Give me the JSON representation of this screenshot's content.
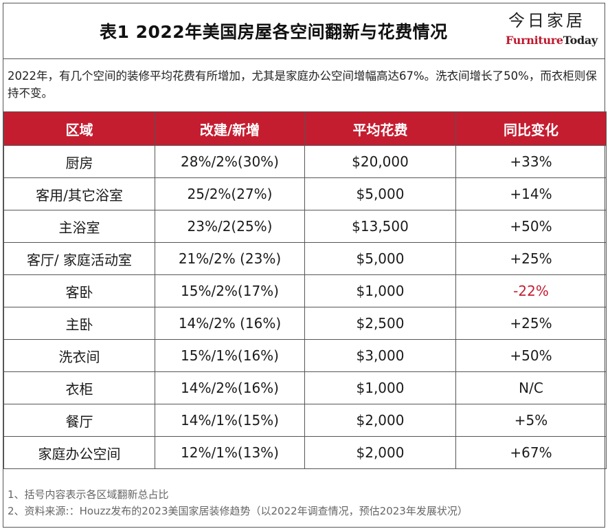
{
  "header": {
    "title": "表1  2022年美国房屋各空间翻新与花费情况",
    "logo_cn": "今日家居",
    "logo_en_part1": "Furniture",
    "logo_en_part2": "Today"
  },
  "intro": "2022年，有几个空间的装修平均花费有所增加，尤其是家庭办公空间增幅高达67%。洗衣间增长了50%，而衣柜则保持不变。",
  "table": {
    "headers": [
      "区域",
      "改建/新增",
      "平均花费",
      "同比变化"
    ],
    "rows": [
      {
        "area": "厨房",
        "ratio": "28%/2%(30%)",
        "cost": "$20,000",
        "change": "+33%"
      },
      {
        "area": "客用/其它浴室",
        "ratio": "25/2%(27%)",
        "cost": "$5,000",
        "change": "+14%"
      },
      {
        "area": "主浴室",
        "ratio": "23%/2(25%)",
        "cost": "$13,500",
        "change": "+50%"
      },
      {
        "area": "客厅/ 家庭活动室",
        "ratio": "21%/2% (23%)",
        "cost": "$5,000",
        "change": "+25%"
      },
      {
        "area": "客卧",
        "ratio": "15%/2%(17%)",
        "cost": "$1,000",
        "change": "-22%"
      },
      {
        "area": "主卧",
        "ratio": "14%/2% (16%)",
        "cost": "$2,500",
        "change": "+25%"
      },
      {
        "area": "洗衣间",
        "ratio": "15%/1%(16%)",
        "cost": "$3,000",
        "change": "+50%"
      },
      {
        "area": "衣柜",
        "ratio": "14%/2%(16%)",
        "cost": "$1,000",
        "change": "N/C"
      },
      {
        "area": "餐厅",
        "ratio": "14%/1%(15%)",
        "cost": "$2,000",
        "change": "+5%"
      },
      {
        "area": "家庭办公空间",
        "ratio": "12%/1%(13%)",
        "cost": "$2,000",
        "change": "+67%"
      }
    ]
  },
  "notes": [
    "1、括号内容表示各区域翻新总占比",
    "2、资料来源:：Houzz发布的2023美国家居装修趋势（以2022年调查情况，预估2023年发展状况）"
  ],
  "colors": {
    "header_bg": "#c51d30",
    "negative": "#c51d30",
    "brand_red": "#c0172d"
  }
}
